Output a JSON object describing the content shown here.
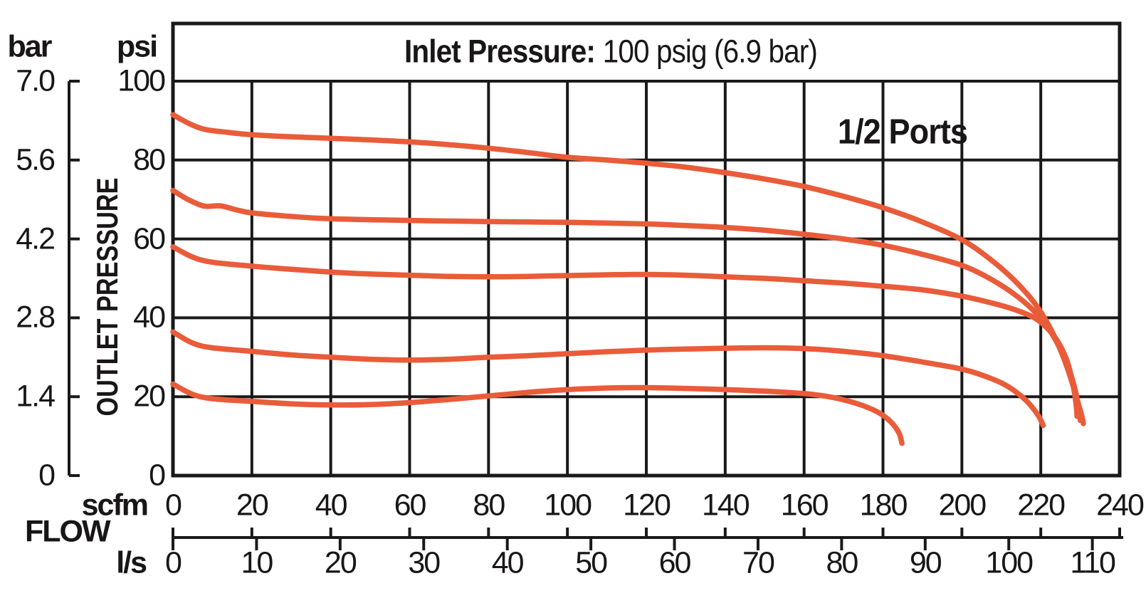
{
  "title": {
    "label": "Inlet Pressure:",
    "value": "100 psig (6.9 bar)"
  },
  "annotation": "1/2 Ports",
  "colors": {
    "curve": "#E95C3A",
    "grid": "#1A1818",
    "text": "#181616",
    "background": "#FFFFFF"
  },
  "y_axis": {
    "label": "OUTLET PRESSURE",
    "left_unit": "bar",
    "right_unit": "psi",
    "bar_ticks": [
      "7.0",
      "5.6",
      "4.2",
      "2.8",
      "1.4",
      "0"
    ],
    "psi_ticks": [
      "100",
      "80",
      "60",
      "40",
      "20",
      "0"
    ],
    "psi_range": [
      0,
      100
    ]
  },
  "x_axis": {
    "label": "FLOW",
    "scfm_unit": "scfm",
    "ls_unit": "l/s",
    "scfm_ticks": [
      "0",
      "20",
      "40",
      "60",
      "80",
      "100",
      "120",
      "140",
      "160",
      "180",
      "200",
      "220",
      "240"
    ],
    "ls_ticks": [
      "0",
      "10",
      "20",
      "30",
      "40",
      "50",
      "60",
      "70",
      "80",
      "90",
      "100",
      "110"
    ],
    "scfm_range": [
      0,
      240
    ],
    "ls_range": [
      0,
      110
    ],
    "scfm_per_ls": 2.1189
  },
  "chart_data": {
    "type": "line",
    "title": "Inlet Pressure: 100 psig (6.9 bar)",
    "xlabel": "FLOW (scfm / l/s)",
    "ylabel": "OUTLET PRESSURE (psi / bar)",
    "xlim": [
      0,
      240
    ],
    "ylim": [
      0,
      100
    ],
    "grid": true,
    "legend": false,
    "x_units": "scfm",
    "y_units": "psi",
    "series": [
      {
        "name": "curve-1",
        "points": [
          [
            0,
            91.5
          ],
          [
            4,
            89.3
          ],
          [
            8,
            87.8
          ],
          [
            14,
            87.0
          ],
          [
            20,
            86.4
          ],
          [
            30,
            85.9
          ],
          [
            40,
            85.5
          ],
          [
            50,
            85.1
          ],
          [
            60,
            84.6
          ],
          [
            70,
            83.9
          ],
          [
            80,
            83.0
          ],
          [
            90,
            81.9
          ],
          [
            100,
            80.7
          ],
          [
            110,
            80.0
          ],
          [
            120,
            79.2
          ],
          [
            130,
            78.2
          ],
          [
            140,
            76.8
          ],
          [
            150,
            75.2
          ],
          [
            160,
            73.3
          ],
          [
            170,
            70.8
          ],
          [
            180,
            67.9
          ],
          [
            190,
            64.3
          ],
          [
            200,
            59.8
          ],
          [
            207,
            55.0
          ],
          [
            213,
            49.8
          ],
          [
            218,
            44.3
          ],
          [
            221.5,
            39.0
          ],
          [
            224.5,
            33.0
          ],
          [
            227,
            26.5
          ],
          [
            229,
            20.0
          ],
          [
            230.3,
            15.5
          ],
          [
            230.8,
            13.2
          ]
        ]
      },
      {
        "name": "curve-2",
        "points": [
          [
            0,
            72.3
          ],
          [
            4,
            69.9
          ],
          [
            8,
            68.3
          ],
          [
            12,
            68.4
          ],
          [
            16,
            67.4
          ],
          [
            20,
            66.6
          ],
          [
            30,
            65.7
          ],
          [
            40,
            65.1
          ],
          [
            60,
            64.7
          ],
          [
            80,
            64.4
          ],
          [
            100,
            64.2
          ],
          [
            120,
            63.8
          ],
          [
            130,
            63.4
          ],
          [
            140,
            62.9
          ],
          [
            150,
            62.2
          ],
          [
            160,
            61.2
          ],
          [
            170,
            60.0
          ],
          [
            180,
            58.4
          ],
          [
            190,
            56.1
          ],
          [
            200,
            53.3
          ],
          [
            207,
            50.0
          ],
          [
            213,
            46.2
          ],
          [
            218,
            42.0
          ],
          [
            222,
            37.2
          ],
          [
            225,
            32.0
          ],
          [
            227.5,
            26.0
          ],
          [
            229,
            20.5
          ],
          [
            229.8,
            16.0
          ],
          [
            230,
            14.0
          ]
        ]
      },
      {
        "name": "curve-3",
        "points": [
          [
            0,
            58.0
          ],
          [
            5,
            55.4
          ],
          [
            10,
            54.1
          ],
          [
            20,
            53.1
          ],
          [
            30,
            52.3
          ],
          [
            40,
            51.6
          ],
          [
            50,
            51.1
          ],
          [
            60,
            50.8
          ],
          [
            70,
            50.5
          ],
          [
            80,
            50.4
          ],
          [
            90,
            50.5
          ],
          [
            100,
            50.7
          ],
          [
            110,
            50.9
          ],
          [
            120,
            51.0
          ],
          [
            130,
            50.8
          ],
          [
            140,
            50.4
          ],
          [
            150,
            50.0
          ],
          [
            160,
            49.4
          ],
          [
            170,
            48.8
          ],
          [
            180,
            48.0
          ],
          [
            190,
            47.1
          ],
          [
            200,
            45.5
          ],
          [
            207,
            43.9
          ],
          [
            213,
            42.2
          ],
          [
            218,
            40.2
          ],
          [
            221,
            38.0
          ],
          [
            224,
            34.5
          ],
          [
            226.5,
            29.5
          ],
          [
            228,
            24.0
          ],
          [
            228.9,
            18.5
          ],
          [
            229.2,
            15.0
          ]
        ]
      },
      {
        "name": "curve-4",
        "points": [
          [
            0,
            36.4
          ],
          [
            5,
            33.6
          ],
          [
            10,
            32.4
          ],
          [
            20,
            31.5
          ],
          [
            30,
            30.6
          ],
          [
            40,
            30.0
          ],
          [
            50,
            29.5
          ],
          [
            60,
            29.3
          ],
          [
            70,
            29.5
          ],
          [
            80,
            30.0
          ],
          [
            90,
            30.4
          ],
          [
            100,
            30.9
          ],
          [
            110,
            31.4
          ],
          [
            120,
            31.8
          ],
          [
            130,
            32.1
          ],
          [
            140,
            32.3
          ],
          [
            150,
            32.4
          ],
          [
            160,
            32.2
          ],
          [
            170,
            31.5
          ],
          [
            180,
            30.4
          ],
          [
            190,
            28.8
          ],
          [
            200,
            27.0
          ],
          [
            205,
            25.5
          ],
          [
            210,
            23.5
          ],
          [
            214,
            21.0
          ],
          [
            217,
            18.3
          ],
          [
            219.5,
            15.0
          ],
          [
            220.6,
            12.7
          ]
        ]
      },
      {
        "name": "curve-5",
        "points": [
          [
            0,
            23.2
          ],
          [
            5,
            20.6
          ],
          [
            10,
            19.5
          ],
          [
            20,
            18.8
          ],
          [
            30,
            18.2
          ],
          [
            40,
            17.9
          ],
          [
            50,
            18.0
          ],
          [
            60,
            18.5
          ],
          [
            70,
            19.3
          ],
          [
            80,
            20.2
          ],
          [
            90,
            21.1
          ],
          [
            100,
            21.8
          ],
          [
            110,
            22.2
          ],
          [
            120,
            22.3
          ],
          [
            130,
            22.1
          ],
          [
            140,
            21.8
          ],
          [
            150,
            21.4
          ],
          [
            160,
            20.8
          ],
          [
            165,
            20.2
          ],
          [
            170,
            19.2
          ],
          [
            175,
            17.7
          ],
          [
            179,
            15.9
          ],
          [
            182,
            13.6
          ],
          [
            184,
            10.9
          ],
          [
            184.8,
            8.2
          ]
        ]
      }
    ]
  }
}
